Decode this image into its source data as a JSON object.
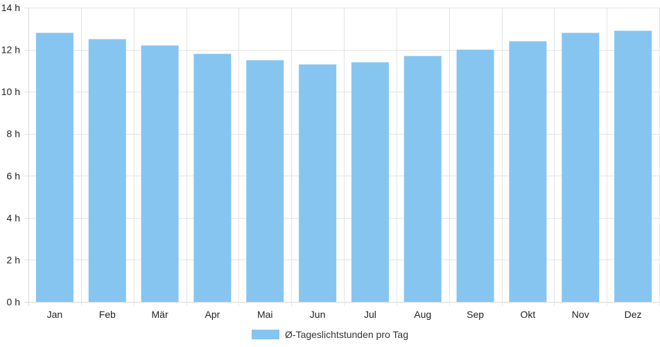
{
  "chart_data": {
    "type": "bar",
    "categories": [
      "Jan",
      "Feb",
      "Mär",
      "Apr",
      "Mai",
      "Jun",
      "Jul",
      "Aug",
      "Sep",
      "Okt",
      "Nov",
      "Dez"
    ],
    "series": [
      {
        "name": "Ø-Tageslichtstunden pro Tag",
        "values": [
          12.8,
          12.5,
          12.2,
          11.8,
          11.5,
          11.3,
          11.4,
          11.7,
          12.0,
          12.4,
          12.8,
          12.9
        ]
      }
    ],
    "ylim": [
      0,
      14
    ],
    "yticks": [
      0,
      2,
      4,
      6,
      8,
      10,
      12,
      14
    ],
    "y_unit_suffix": " h",
    "grid": true,
    "legend_position": "bottom",
    "colors": {
      "bar": "#87c5f1",
      "grid": "#e4e4e4",
      "axis": "#d9d9d9"
    }
  }
}
